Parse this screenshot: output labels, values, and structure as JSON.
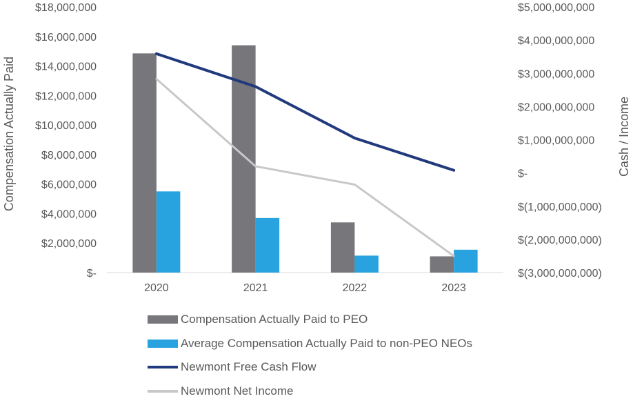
{
  "chart_data": {
    "type": "bar",
    "categories": [
      "2020",
      "2021",
      "2022",
      "2023"
    ],
    "left_axis": {
      "label": "Compensation Actually Paid",
      "range": [
        0,
        18000000
      ],
      "ticks": [
        {
          "value": 0,
          "label": "$-"
        },
        {
          "value": 2000000,
          "label": "$2,000,000"
        },
        {
          "value": 4000000,
          "label": "$4,000,000"
        },
        {
          "value": 6000000,
          "label": "$6,000,000"
        },
        {
          "value": 8000000,
          "label": "$8,000,000"
        },
        {
          "value": 10000000,
          "label": "$10,000,000"
        },
        {
          "value": 12000000,
          "label": "$12,000,000"
        },
        {
          "value": 14000000,
          "label": "$14,000,000"
        },
        {
          "value": 16000000,
          "label": "$16,000,000"
        },
        {
          "value": 18000000,
          "label": "$18,000,000"
        }
      ]
    },
    "right_axis": {
      "label": "Cash / Income",
      "range": [
        -3000000000,
        5000000000
      ],
      "ticks": [
        {
          "value": -3000000000,
          "label": "$(3,000,000,000)"
        },
        {
          "value": -2000000000,
          "label": "$(2,000,000,000)"
        },
        {
          "value": -1000000000,
          "label": "$(1,000,000,000)"
        },
        {
          "value": 0,
          "label": "$-"
        },
        {
          "value": 1000000000,
          "label": "$1,000,000,000"
        },
        {
          "value": 2000000000,
          "label": "$2,000,000,000"
        },
        {
          "value": 3000000000,
          "label": "$3,000,000,000"
        },
        {
          "value": 4000000000,
          "label": "$4,000,000,000"
        },
        {
          "value": 5000000000,
          "label": "$5,000,000,000"
        }
      ]
    },
    "series": [
      {
        "name": "Compensation Actually Paid to PEO",
        "kind": "bar",
        "axis": "left",
        "color": "#76767b",
        "values": [
          14850000,
          15400000,
          3400000,
          1100000
        ]
      },
      {
        "name": "Average Compensation Actually Paid to non-PEO NEOs",
        "kind": "bar",
        "axis": "left",
        "color": "#29a3e0",
        "values": [
          5500000,
          3700000,
          1150000,
          1550000
        ]
      },
      {
        "name": "Newmont Free Cash Flow",
        "kind": "line",
        "axis": "right",
        "color": "#213a7d",
        "values": [
          3590000000,
          2600000000,
          1050000000,
          80000000
        ]
      },
      {
        "name": "Newmont Net Income",
        "kind": "line",
        "axis": "right",
        "color": "#c8c8c8",
        "values": [
          2830000000,
          200000000,
          -350000000,
          -2500000000
        ]
      }
    ]
  }
}
